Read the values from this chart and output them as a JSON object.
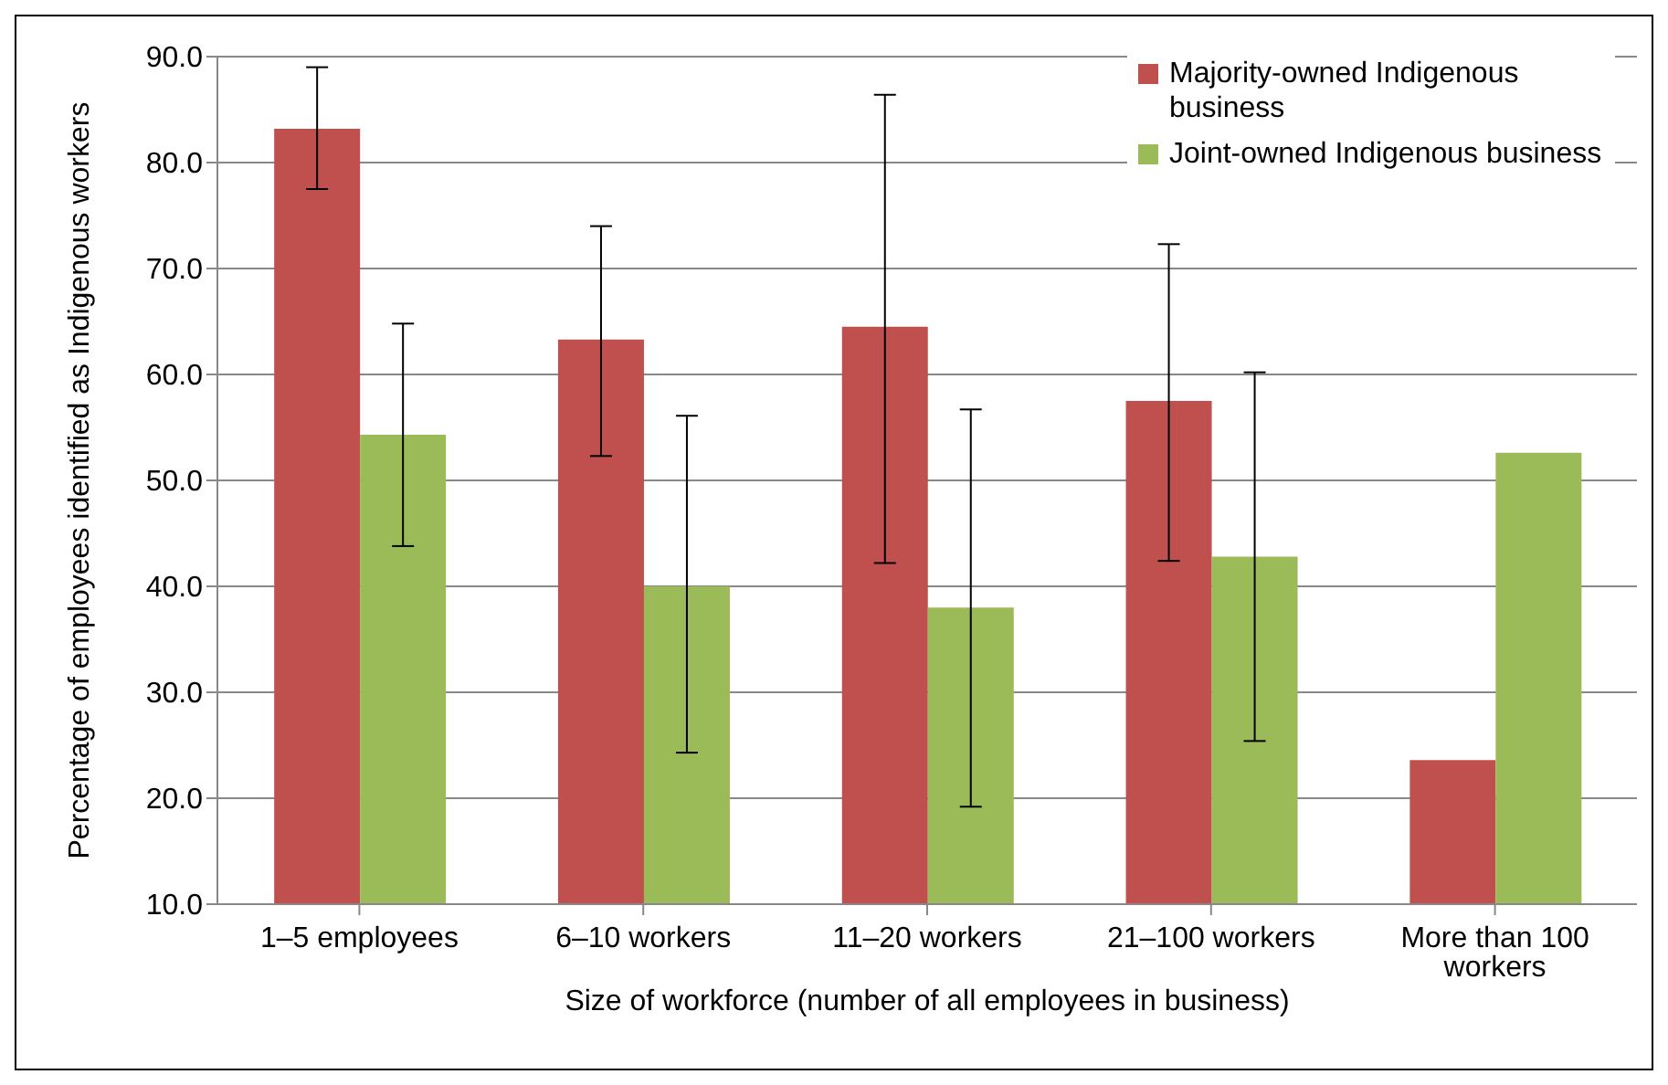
{
  "chart_data": {
    "type": "bar",
    "xlabel": "Size of workforce (number of all employees in business)",
    "ylabel": "Percentage of employees identified as Indigenous workers",
    "categories": [
      "1–5 employees",
      "6–10 workers",
      "11–20 workers",
      "21–100 workers",
      "More than 100 workers"
    ],
    "series": [
      {
        "name": "Majority-owned Indigenous business",
        "color": "#c0504d",
        "values": [
          83.2,
          63.3,
          64.5,
          57.5,
          23.6
        ],
        "errors": [
          [
            77.5,
            89.0
          ],
          [
            52.3,
            74.0
          ],
          [
            42.2,
            86.4
          ],
          [
            42.4,
            72.3
          ],
          null
        ]
      },
      {
        "name": "Joint-owned Indigenous business",
        "color": "#9bbb59",
        "values": [
          54.3,
          40.0,
          38.0,
          42.8,
          52.6
        ],
        "errors": [
          [
            43.8,
            64.8
          ],
          [
            24.3,
            56.1
          ],
          [
            19.2,
            56.7
          ],
          [
            25.4,
            60.2
          ],
          null
        ]
      }
    ],
    "ylim": [
      10,
      90
    ],
    "yticks": [
      {
        "value": 10,
        "label": "10.0"
      },
      {
        "value": 20,
        "label": "20.0"
      },
      {
        "value": 30,
        "label": "30.0"
      },
      {
        "value": 40,
        "label": "40.0"
      },
      {
        "value": 50,
        "label": "50.0"
      },
      {
        "value": 60,
        "label": "60.0"
      },
      {
        "value": 70,
        "label": "70.0"
      },
      {
        "value": 80,
        "label": "80.0"
      },
      {
        "value": 90,
        "label": "90.0"
      }
    ],
    "grid": "y",
    "legend": "top right"
  }
}
